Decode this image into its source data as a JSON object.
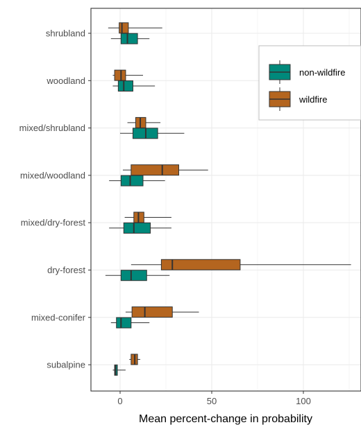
{
  "chart_data": {
    "type": "boxplot",
    "orientation": "horizontal",
    "title": "",
    "xlabel": "Mean percent-change in probability",
    "ylabel": "",
    "xlim": [
      -15,
      130
    ],
    "xticks": [
      0,
      50,
      100
    ],
    "grid": true,
    "legend_position": "right",
    "categories": [
      "shrubland",
      "woodland",
      "mixed/shrubland",
      "mixed/woodland",
      "mixed/dry-forest",
      "dry-forest",
      "mixed-conifer",
      "subalpine"
    ],
    "series": [
      {
        "name": "non-wildfire",
        "color": "#00897b",
        "boxes": [
          {
            "category": "shrubland",
            "min": -5,
            "q1": 0.5,
            "median": 4,
            "q3": 9.5,
            "max": 16
          },
          {
            "category": "woodland",
            "min": -4,
            "q1": -1,
            "median": 2,
            "q3": 7,
            "max": 19
          },
          {
            "category": "mixed/shrubland",
            "min": 0,
            "q1": 7,
            "median": 14,
            "q3": 20.5,
            "max": 35
          },
          {
            "category": "mixed/woodland",
            "min": -6,
            "q1": 0.5,
            "median": 5.5,
            "q3": 12.5,
            "max": 24.5
          },
          {
            "category": "mixed/dry-forest",
            "min": -6,
            "q1": 2,
            "median": 7.5,
            "q3": 16.5,
            "max": 28
          },
          {
            "category": "dry-forest",
            "min": -8,
            "q1": 0.5,
            "median": 6,
            "q3": 14.5,
            "max": 27
          },
          {
            "category": "mixed-conifer",
            "min": -5,
            "q1": -2,
            "median": 0.5,
            "q3": 6,
            "max": 16
          },
          {
            "category": "subalpine",
            "min": -4,
            "q1": -3,
            "median": -2.5,
            "q3": -1.5,
            "max": 3
          }
        ]
      },
      {
        "name": "wildfire",
        "color": "#b4651f",
        "boxes": [
          {
            "category": "shrubland",
            "min": -6.5,
            "q1": -0.5,
            "median": 1,
            "q3": 4.5,
            "max": 23
          },
          {
            "category": "woodland",
            "min": -4,
            "q1": -3,
            "median": 0.5,
            "q3": 3,
            "max": 12.5
          },
          {
            "category": "mixed/shrubland",
            "min": 4,
            "q1": 8.5,
            "median": 11,
            "q3": 14,
            "max": 22
          },
          {
            "category": "mixed/woodland",
            "min": 1.5,
            "q1": 6,
            "median": 23,
            "q3": 32,
            "max": 48
          },
          {
            "category": "mixed/dry-forest",
            "min": 2.5,
            "q1": 7.5,
            "median": 10,
            "q3": 13,
            "max": 28
          },
          {
            "category": "dry-forest",
            "min": 6,
            "q1": 22.5,
            "median": 28.5,
            "q3": 65.5,
            "max": 126
          },
          {
            "category": "mixed-conifer",
            "min": 3,
            "q1": 6.5,
            "median": 13.5,
            "q3": 28.5,
            "max": 43
          },
          {
            "category": "subalpine",
            "min": 5,
            "q1": 6,
            "median": 8,
            "q3": 9.5,
            "max": 11
          }
        ]
      }
    ]
  }
}
